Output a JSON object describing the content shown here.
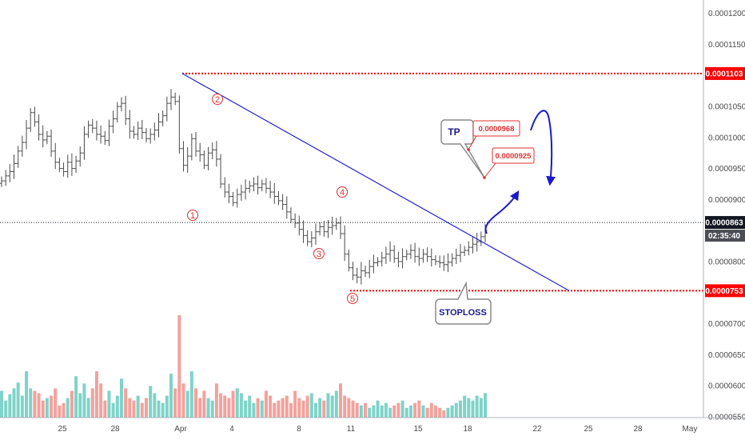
{
  "chart_data": {
    "type": "candlestick-ohlc",
    "y_axis": {
      "ticks": [
        "0.0001200",
        "0.0001150",
        "0.0001050",
        "0.0001000",
        "0.0000950",
        "0.0000900",
        "0.0000800",
        "0.0000700",
        "0.0000650",
        "0.0000600",
        "0.0000550"
      ],
      "tick_values": [
        0.00012,
        0.000115,
        0.000105,
        0.0001,
        9.5e-05,
        9e-05,
        8e-05,
        7e-05,
        6.5e-05,
        6e-05,
        5.5e-05
      ],
      "range": [
        5.485e-05,
        0.00012215
      ]
    },
    "x_axis": {
      "ticks": [
        "25",
        "28",
        "Apr",
        "4",
        "8",
        "11",
        "15",
        "18",
        "22",
        "25",
        "28",
        "May"
      ]
    },
    "levels": {
      "resistance": {
        "value": 0.0001103,
        "label": "0.0001103",
        "color": "#ff0000"
      },
      "current": {
        "value": 8.63e-05,
        "label": "0.0000863",
        "countdown": "02:35:40",
        "color": "#131722"
      },
      "stoploss_level": {
        "value": 7.53e-05,
        "label": "0.0000753",
        "color": "#ff0000"
      }
    },
    "trendline": {
      "from_value": 0.0001103,
      "to_value": 7.53e-05,
      "color": "#2323d4"
    },
    "wave_labels": [
      "1",
      "2",
      "3",
      "4",
      "5"
    ],
    "targets": [
      {
        "label": "0.0000968",
        "value": 9.68e-05
      },
      {
        "label": "0.0000925",
        "value": 9.25e-05
      }
    ],
    "callouts": {
      "tp": "TP",
      "stoploss": "STOPLOSS"
    },
    "colors": {
      "candle": "#4a4a4a",
      "volume_up": "#7fd3c8",
      "volume_down": "#f4a19c",
      "wave_label": "#e0312f",
      "arrow": "#1a1acc",
      "target_box": "#e0312f",
      "callout_text": "#1a1a8c"
    },
    "close": [
      9.3e-05,
      9.38e-05,
      9.45e-05,
      9.58e-05,
      9.78e-05,
      9.92e-05,
      0.0001015,
      0.000104,
      0.0001025,
      0.0001005,
      9.96e-05,
      0.0001002,
      9.78e-05,
      9.6e-05,
      9.5e-05,
      9.45e-05,
      9.6e-05,
      9.5e-05,
      9.62e-05,
      9.75e-05,
      0.0001005,
      0.000102,
      0.0001015,
      0.0001005,
      0.0001002,
      9.95e-05,
      0.0001018,
      0.000103,
      0.000105,
      0.0001055,
      0.000103,
      0.000101,
      0.0001005,
      0.0001015,
      0.0001008,
      9.98e-05,
      0.0001005,
      0.0001012,
      0.0001025,
      0.0001035,
      0.0001055,
      0.0001065,
      0.0001058,
      9.82e-05,
      9.55e-05,
      9.7e-05,
      9.98e-05,
      9.78e-05,
      9.72e-05,
      9.55e-05,
      9.75e-05,
      9.8e-05,
      9.65e-05,
      9.25e-05,
      9.12e-05,
      9.05e-05,
      8.95e-05,
      9.08e-05,
      9.12e-05,
      9.18e-05,
      9.22e-05,
      9.25e-05,
      9.19e-05,
      9.25e-05,
      9.18e-05,
      9.12e-05,
      9.05e-05,
      8.98e-05,
      8.92e-05,
      8.8e-05,
      8.68e-05,
      8.62e-05,
      8.52e-05,
      8.42e-05,
      8.32e-05,
      8.38e-05,
      8.48e-05,
      8.56e-05,
      8.48e-05,
      8.55e-05,
      8.58e-05,
      8.62e-05,
      8.45e-05,
      8.12e-05,
      7.9e-05,
      7.78e-05,
      7.75e-05,
      7.85e-05,
      7.82e-05,
      7.92e-05,
      7.98e-05,
      8e-05,
      8.06e-05,
      8.12e-05,
      8.18e-05,
      8.05e-05,
      8e-05,
      8.08e-05,
      8.12e-05,
      8.18e-05,
      8.08e-05,
      8.05e-05,
      8.12e-05,
      8.08e-05,
      8.03e-05,
      8e-05,
      7.98e-05,
      7.95e-05,
      7.99e-05,
      8.05e-05,
      8.1e-05,
      8.15e-05,
      8.18e-05,
      8.23e-05,
      8.28e-05,
      8.32e-05,
      8.4e-05,
      8.5e-05
    ],
    "volume": [
      0.55,
      0.35,
      0.48,
      0.6,
      0.72,
      0.45,
      0.95,
      0.6,
      0.55,
      0.5,
      0.35,
      0.4,
      0.45,
      0.6,
      0.25,
      0.3,
      0.4,
      0.55,
      0.85,
      0.5,
      0.7,
      0.4,
      0.6,
      0.95,
      0.7,
      0.35,
      0.55,
      0.3,
      0.45,
      0.8,
      0.6,
      0.4,
      0.35,
      0.45,
      0.3,
      0.4,
      0.65,
      0.5,
      0.35,
      0.3,
      0.45,
      0.9,
      0.6,
      2.1,
      0.7,
      0.55,
      0.95,
      0.6,
      0.4,
      0.55,
      0.4,
      0.35,
      0.7,
      0.5,
      0.45,
      0.4,
      0.55,
      0.6,
      0.5,
      0.35,
      0.45,
      0.3,
      0.4,
      0.35,
      0.55,
      0.45,
      0.3,
      0.35,
      0.4,
      0.45,
      0.3,
      0.55,
      0.4,
      0.35,
      0.45,
      0.5,
      0.3,
      0.4,
      0.35,
      0.5,
      0.45,
      0.55,
      0.7,
      0.45,
      0.4,
      0.35,
      0.3,
      0.25,
      0.3,
      0.2,
      0.25,
      0.35,
      0.25,
      0.3,
      0.2,
      0.25,
      0.3,
      0.35,
      0.2,
      0.25,
      0.3,
      0.35,
      0.25,
      0.2,
      0.3,
      0.25,
      0.2,
      0.15,
      0.2,
      0.25,
      0.3,
      0.35,
      0.45,
      0.4,
      0.35,
      0.45,
      0.4,
      0.5
    ]
  }
}
